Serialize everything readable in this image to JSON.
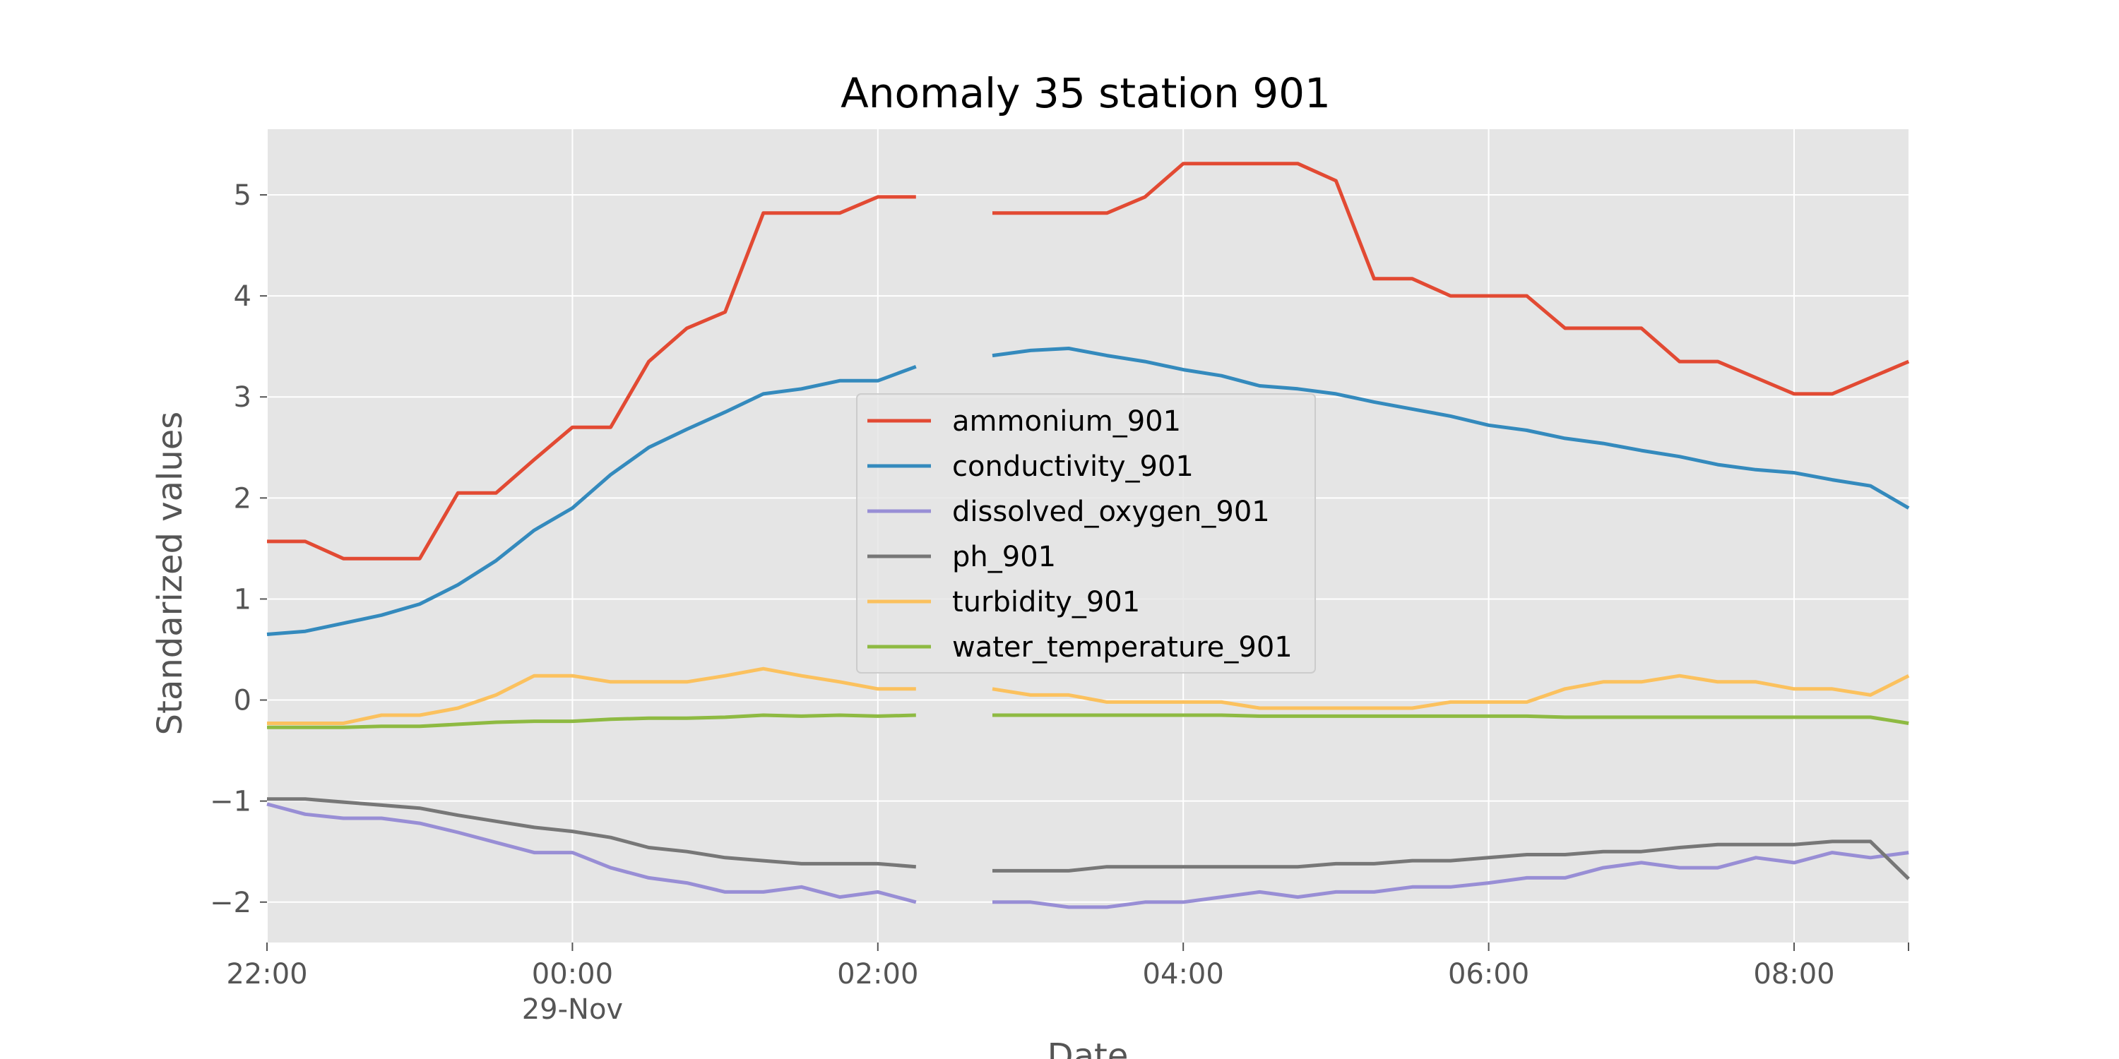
{
  "chart_data": {
    "type": "line",
    "title": "Anomaly 35 station 901",
    "xlabel": "Date",
    "ylabel": "Standarized values",
    "x_unit": "time of day (22:00 on 28-Nov through 08:45 on 29-Nov), 15-minute steps",
    "x": [
      "22:00",
      "22:15",
      "22:30",
      "22:45",
      "23:00",
      "23:15",
      "23:30",
      "23:45",
      "00:00",
      "00:15",
      "00:30",
      "00:45",
      "01:00",
      "01:15",
      "01:30",
      "01:45",
      "02:00",
      "02:15",
      "02:30",
      "02:45",
      "03:00",
      "03:15",
      "03:30",
      "03:45",
      "04:00",
      "04:15",
      "04:30",
      "04:45",
      "05:00",
      "05:15",
      "05:30",
      "05:45",
      "06:00",
      "06:15",
      "06:30",
      "06:45",
      "07:00",
      "07:15",
      "07:30",
      "07:45",
      "08:00",
      "08:15",
      "08:30",
      "08:45"
    ],
    "x_ticks": [
      {
        "index": 0,
        "label": "22:00"
      },
      {
        "index": 8,
        "label": "00:00",
        "sublabel": "29-Nov"
      },
      {
        "index": 16,
        "label": "02:00"
      },
      {
        "index": 24,
        "label": "04:00"
      },
      {
        "index": 32,
        "label": "06:00"
      },
      {
        "index": 40,
        "label": "08:00"
      }
    ],
    "ylim": [
      -2.4,
      5.65
    ],
    "y_ticks": [
      {
        "value": 5,
        "label": "5"
      },
      {
        "value": 4,
        "label": "4"
      },
      {
        "value": 3,
        "label": "3"
      },
      {
        "value": 2,
        "label": "2"
      },
      {
        "value": 1,
        "label": "1"
      },
      {
        "value": 0,
        "label": "0"
      },
      {
        "value": -1,
        "label": "−1"
      },
      {
        "value": -2,
        "label": "−2"
      }
    ],
    "grid": true,
    "legend_position": "center",
    "series": [
      {
        "name": "ammonium_901",
        "color": "#E24A33",
        "values": [
          1.57,
          1.57,
          1.4,
          1.4,
          1.4,
          2.05,
          2.05,
          2.38,
          2.7,
          2.7,
          3.35,
          3.68,
          3.84,
          4.82,
          4.82,
          4.82,
          4.98,
          4.98,
          null,
          4.82,
          4.82,
          4.82,
          4.82,
          4.98,
          5.31,
          5.31,
          5.31,
          5.31,
          5.14,
          4.17,
          4.17,
          4.0,
          4.0,
          4.0,
          3.68,
          3.68,
          3.68,
          3.35,
          3.35,
          3.19,
          3.03,
          3.03,
          3.19,
          3.35
        ]
      },
      {
        "name": "conductivity_901",
        "color": "#348ABD",
        "values": [
          0.65,
          0.68,
          0.76,
          0.84,
          0.95,
          1.14,
          1.38,
          1.68,
          1.9,
          2.23,
          2.5,
          2.68,
          2.85,
          3.03,
          3.08,
          3.16,
          3.16,
          3.3,
          null,
          3.41,
          3.46,
          3.48,
          3.41,
          3.35,
          3.27,
          3.21,
          3.11,
          3.08,
          3.03,
          2.95,
          2.88,
          2.81,
          2.72,
          2.67,
          2.59,
          2.54,
          2.47,
          2.41,
          2.33,
          2.28,
          2.25,
          2.18,
          2.12,
          1.9
        ]
      },
      {
        "name": "dissolved_oxygen_901",
        "color": "#988ED5",
        "values": [
          -1.03,
          -1.13,
          -1.17,
          -1.17,
          -1.22,
          -1.31,
          -1.41,
          -1.51,
          -1.51,
          -1.66,
          -1.76,
          -1.81,
          -1.9,
          -1.9,
          -1.85,
          -1.95,
          -1.9,
          -2.0,
          null,
          -2.0,
          -2.0,
          -2.05,
          -2.05,
          -2.0,
          -2.0,
          -1.95,
          -1.9,
          -1.95,
          -1.9,
          -1.9,
          -1.85,
          -1.85,
          -1.81,
          -1.76,
          -1.76,
          -1.66,
          -1.61,
          -1.66,
          -1.66,
          -1.56,
          -1.61,
          -1.51,
          -1.56,
          -1.51
        ]
      },
      {
        "name": "ph_901",
        "color": "#777777",
        "values": [
          -0.98,
          -0.98,
          -1.01,
          -1.04,
          -1.07,
          -1.14,
          -1.2,
          -1.26,
          -1.3,
          -1.36,
          -1.46,
          -1.5,
          -1.56,
          -1.59,
          -1.62,
          -1.62,
          -1.62,
          -1.65,
          null,
          -1.69,
          -1.69,
          -1.69,
          -1.65,
          -1.65,
          -1.65,
          -1.65,
          -1.65,
          -1.65,
          -1.62,
          -1.62,
          -1.59,
          -1.59,
          -1.56,
          -1.53,
          -1.53,
          -1.5,
          -1.5,
          -1.46,
          -1.43,
          -1.43,
          -1.43,
          -1.4,
          -1.4,
          -1.77
        ]
      },
      {
        "name": "turbidity_901",
        "color": "#FBC15E",
        "values": [
          -0.23,
          -0.23,
          -0.23,
          -0.15,
          -0.15,
          -0.08,
          0.05,
          0.24,
          0.24,
          0.18,
          0.18,
          0.18,
          0.24,
          0.31,
          0.24,
          0.18,
          0.11,
          0.11,
          null,
          0.11,
          0.05,
          0.05,
          -0.02,
          -0.02,
          -0.02,
          -0.02,
          -0.08,
          -0.08,
          -0.08,
          -0.08,
          -0.08,
          -0.02,
          -0.02,
          -0.02,
          0.11,
          0.18,
          0.18,
          0.24,
          0.18,
          0.18,
          0.11,
          0.11,
          0.05,
          0.24
        ]
      },
      {
        "name": "water_temperature_901",
        "color": "#8EBA42",
        "values": [
          -0.27,
          -0.27,
          -0.27,
          -0.26,
          -0.26,
          -0.24,
          -0.22,
          -0.21,
          -0.21,
          -0.19,
          -0.18,
          -0.18,
          -0.17,
          -0.15,
          -0.16,
          -0.15,
          -0.16,
          -0.15,
          null,
          -0.15,
          -0.15,
          -0.15,
          -0.15,
          -0.15,
          -0.15,
          -0.15,
          -0.16,
          -0.16,
          -0.16,
          -0.16,
          -0.16,
          -0.16,
          -0.16,
          -0.16,
          -0.17,
          -0.17,
          -0.17,
          -0.17,
          -0.17,
          -0.17,
          -0.17,
          -0.17,
          -0.17,
          -0.23
        ]
      }
    ]
  }
}
